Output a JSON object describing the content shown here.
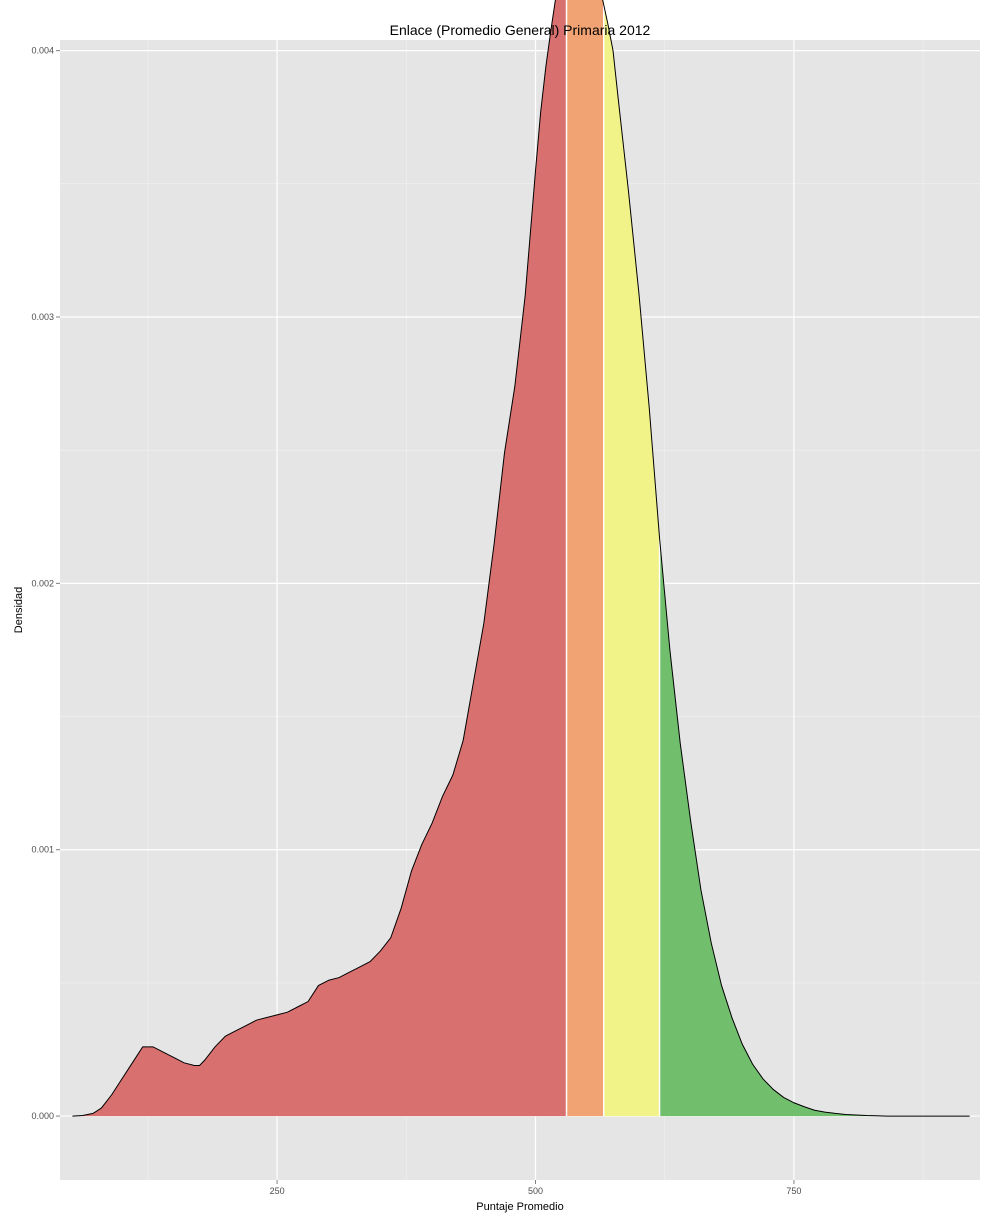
{
  "chart_data": {
    "type": "area",
    "title": "Enlace (Promedio General) Primaria 2012",
    "xlabel": "Puntaje Promedio",
    "ylabel": "Densidad",
    "xlim": [
      40,
      930
    ],
    "ylim": [
      -0.00024,
      0.00404
    ],
    "x_ticks": [
      {
        "value": 250,
        "label": "250"
      },
      {
        "value": 500,
        "label": "500"
      },
      {
        "value": 750,
        "label": "750"
      }
    ],
    "y_ticks": [
      {
        "value": 0.0,
        "label": "0.000"
      },
      {
        "value": 0.001,
        "label": "0.001"
      },
      {
        "value": 0.002,
        "label": "0.002"
      },
      {
        "value": 0.003,
        "label": "0.003"
      },
      {
        "value": 0.004,
        "label": "0.004"
      }
    ],
    "grid": true,
    "background_color": "#e5e5e5",
    "series": [
      {
        "x": [
          52,
          62,
          72,
          80,
          90,
          100,
          110,
          120,
          130,
          140,
          150,
          160,
          170,
          175,
          180,
          190,
          200,
          210,
          220,
          230,
          240,
          250,
          260,
          270,
          280,
          290,
          300,
          310,
          320,
          330,
          340,
          350,
          360,
          370,
          380,
          390,
          400,
          410,
          420,
          430,
          440,
          450,
          460,
          470,
          480,
          490,
          500,
          505,
          510,
          515,
          520,
          525,
          530,
          535,
          540,
          545,
          550,
          555,
          560,
          565,
          570,
          575,
          580,
          590,
          600,
          610,
          620,
          630,
          640,
          650,
          660,
          670,
          680,
          690,
          700,
          710,
          720,
          730,
          740,
          750,
          760,
          770,
          780,
          790,
          800,
          810,
          820,
          830,
          840,
          860,
          880,
          900,
          920
        ],
        "y": [
          0.0,
          2e-06,
          1e-05,
          3e-05,
          8e-05,
          0.00014,
          0.0002,
          0.00026,
          0.00026,
          0.00024,
          0.00022,
          0.0002,
          0.00019,
          0.00019,
          0.00021,
          0.00026,
          0.0003,
          0.00032,
          0.00034,
          0.00036,
          0.00037,
          0.00038,
          0.00039,
          0.00041,
          0.00043,
          0.00049,
          0.00051,
          0.00052,
          0.00054,
          0.00056,
          0.00058,
          0.00062,
          0.00067,
          0.00078,
          0.00092,
          0.00102,
          0.0011,
          0.0012,
          0.00128,
          0.00141,
          0.00163,
          0.00185,
          0.00215,
          0.00249,
          0.00274,
          0.00308,
          0.00355,
          0.00377,
          0.00394,
          0.00408,
          0.00421,
          0.0043,
          0.00436,
          0.0044,
          0.00442,
          0.00441,
          0.00437,
          0.00431,
          0.00426,
          0.00419,
          0.0041,
          0.004,
          0.00382,
          0.00347,
          0.00309,
          0.00266,
          0.00217,
          0.00175,
          0.0014,
          0.00111,
          0.00085,
          0.00065,
          0.00049,
          0.00037,
          0.00027,
          0.000195,
          0.00014,
          0.0001,
          7e-05,
          5e-05,
          3.5e-05,
          2.2e-05,
          1.5e-05,
          1e-05,
          6e-06,
          4e-06,
          2e-06,
          1e-06,
          0.0,
          0.0,
          0.0,
          0.0,
          0.0
        ]
      }
    ],
    "bands": [
      {
        "from": 52,
        "to": 530,
        "color": "#d7706f"
      },
      {
        "from": 530,
        "to": 566,
        "color": "#f2a374"
      },
      {
        "from": 566,
        "to": 620,
        "color": "#f1f287"
      },
      {
        "from": 620,
        "to": 920,
        "color": "#71bf6d"
      }
    ]
  }
}
